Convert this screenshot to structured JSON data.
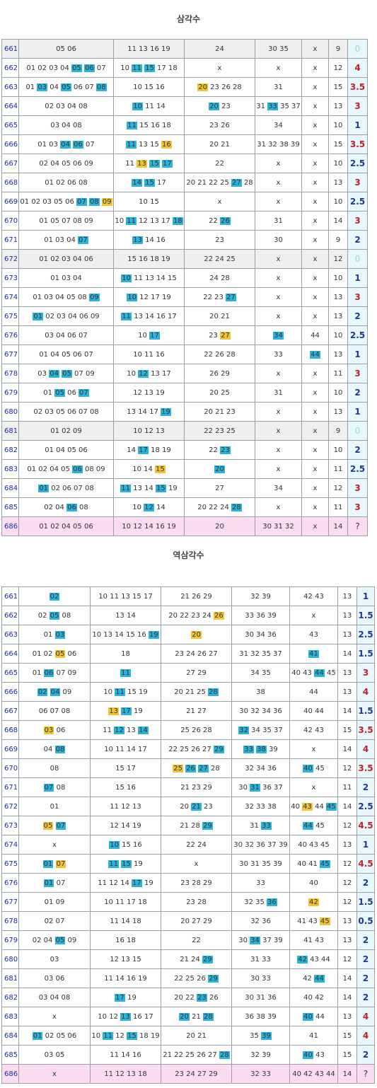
{
  "t1": "삼각수",
  "t2": "역삼각수",
  "table1": [
    {
      "no": "661",
      "cells": [
        "05 06",
        "11 13 16 19",
        "24",
        "30 35",
        "x"
      ],
      "sum": "9",
      "res": "0",
      "cls": "zero",
      "row": "gray"
    },
    {
      "no": "662",
      "cells": [
        "01 02 03 04 [05] [06] 07",
        "10 [11] [15] 17 18",
        "x",
        "x",
        "x"
      ],
      "sum": "12",
      "res": "4",
      "cls": "red"
    },
    {
      "no": "663",
      "cells": [
        "01 [03] 04 [05] 06 07 [08]",
        "10 15 16",
        "{20} 23 26 28",
        "31",
        "x"
      ],
      "sum": "15",
      "res": "3.5",
      "cls": "red"
    },
    {
      "no": "664",
      "cells": [
        "02 03 04 08",
        "[10] 11 14",
        "[20] 23",
        "31 [33] 35 37",
        "x"
      ],
      "sum": "13",
      "res": "3",
      "cls": "red"
    },
    {
      "no": "665",
      "cells": [
        "03 04 08",
        "[11] 15 16 18",
        "23 26",
        "34",
        "x"
      ],
      "sum": "10",
      "res": "1",
      "cls": ""
    },
    {
      "no": "666",
      "cells": [
        "01 03 [04] [06] 07",
        "[11] 13 15 {16}",
        "20 21",
        "31 32 38 39",
        "x"
      ],
      "sum": "15",
      "res": "3.5",
      "cls": "red"
    },
    {
      "no": "667",
      "cells": [
        "02 04 05 06 09",
        "11 {13} [15] [17]",
        "22",
        "x",
        "x"
      ],
      "sum": "10",
      "res": "2.5",
      "cls": ""
    },
    {
      "no": "668",
      "cells": [
        "01 02 06 08",
        "[14] [15] 17",
        "20 21 22 25 [27] 28",
        "x",
        "x"
      ],
      "sum": "13",
      "res": "3",
      "cls": "red"
    },
    {
      "no": "669",
      "cells": [
        "01 02 03 05 06 [07] [08] {09}",
        "10 15",
        "x",
        "x",
        "x"
      ],
      "sum": "10",
      "res": "2.5",
      "cls": ""
    },
    {
      "no": "670",
      "cells": [
        "01 05 07 08 09",
        "10 [11] 12 13 17 [18]",
        "22 [26]",
        "31",
        "x"
      ],
      "sum": "14",
      "res": "3",
      "cls": "red"
    },
    {
      "no": "671",
      "cells": [
        "01 03 04 [07]",
        "[13] 14 16",
        "23",
        "30",
        "x"
      ],
      "sum": "9",
      "res": "2",
      "cls": ""
    },
    {
      "no": "672",
      "cells": [
        "01 02 03 04 06",
        "15 16 18 19",
        "22 24 25",
        "x",
        "x"
      ],
      "sum": "12",
      "res": "0",
      "cls": "zero",
      "row": "gray"
    },
    {
      "no": "673",
      "cells": [
        "01 03 04",
        "[10] 11 13 14 15",
        "24 28",
        "x",
        "x"
      ],
      "sum": "10",
      "res": "1",
      "cls": ""
    },
    {
      "no": "674",
      "cells": [
        "01 03 04 05 08 [09]",
        "[10] 12 17 19",
        "22 23 [27]",
        "x",
        "x"
      ],
      "sum": "13",
      "res": "3",
      "cls": "red"
    },
    {
      "no": "675",
      "cells": [
        "[01] 02 03 04 06 09",
        "[11] 13 14 16 17",
        "20 21",
        "x",
        "x"
      ],
      "sum": "13",
      "res": "2",
      "cls": ""
    },
    {
      "no": "676",
      "cells": [
        "03 04 06 07",
        "10 [17]",
        "23 {27}",
        "[34]",
        "44"
      ],
      "sum": "10",
      "res": "2.5",
      "cls": ""
    },
    {
      "no": "677",
      "cells": [
        "01 04 05 06 07",
        "10 11 16",
        "22 26 28",
        "33",
        "[44]"
      ],
      "sum": "13",
      "res": "1",
      "cls": ""
    },
    {
      "no": "678",
      "cells": [
        "03 [04] [05] 07 09",
        "10 [12] 13 17",
        "26 29",
        "x",
        "x"
      ],
      "sum": "11",
      "res": "3",
      "cls": "red"
    },
    {
      "no": "679",
      "cells": [
        "01 [05] 06 [07]",
        "12 13 19",
        "20 25",
        "31",
        "x"
      ],
      "sum": "10",
      "res": "2",
      "cls": ""
    },
    {
      "no": "680",
      "cells": [
        "02 03 05 06 07 08",
        "13 14 17 [19]",
        "20 21 23",
        "x",
        "x"
      ],
      "sum": "13",
      "res": "1",
      "cls": ""
    },
    {
      "no": "681",
      "cells": [
        "01 02 09",
        "10 12 13",
        "22 23 25",
        "x",
        "x"
      ],
      "sum": "9",
      "res": "0",
      "cls": "zero",
      "row": "gray"
    },
    {
      "no": "682",
      "cells": [
        "01 04 05 06",
        "14 [17] 18 19",
        "22 [23]",
        "x",
        "x"
      ],
      "sum": "10",
      "res": "2",
      "cls": ""
    },
    {
      "no": "683",
      "cells": [
        "01 02 04 05 [06] 08 09",
        "10 14 {15}",
        "[20]",
        "x",
        "x"
      ],
      "sum": "11",
      "res": "2.5",
      "cls": ""
    },
    {
      "no": "684",
      "cells": [
        "[01] 02 06 07 08",
        "[11] 13 14 [15] 19",
        "27",
        "34",
        "x"
      ],
      "sum": "12",
      "res": "3",
      "cls": "red"
    },
    {
      "no": "685",
      "cells": [
        "02 04 [06] 08",
        "10 [12] 14",
        "20 22 24 [28]",
        "x",
        "x"
      ],
      "sum": "11",
      "res": "3",
      "cls": "red"
    },
    {
      "no": "686",
      "cells": [
        "01 02 04 05 06",
        "10 12 14 16 19",
        "20",
        "30 31 32",
        "x"
      ],
      "sum": "14",
      "res": "?",
      "cls": "q",
      "row": "pink"
    }
  ],
  "table2": [
    {
      "no": "661",
      "cells": [
        "[02]",
        "10 11 13 15 17",
        "21 26 29",
        "32 39",
        "42 43"
      ],
      "sum": "13",
      "res": "1",
      "cls": ""
    },
    {
      "no": "662",
      "cells": [
        "02 [05] 08",
        "13 14",
        "20 22 23 24 {26}",
        "33 36 39",
        "x"
      ],
      "sum": "13",
      "res": "1.5",
      "cls": ""
    },
    {
      "no": "663",
      "cells": [
        "01 [03]",
        "10 13 14 15 16 [19]",
        "{20}",
        "30 34 36",
        "43"
      ],
      "sum": "13",
      "res": "2.5",
      "cls": ""
    },
    {
      "no": "664",
      "cells": [
        "01 02 {05} 06",
        "18",
        "23 24 26 27",
        "31 32 35 37",
        "[41]"
      ],
      "sum": "14",
      "res": "1.5",
      "cls": ""
    },
    {
      "no": "665",
      "cells": [
        "01 [06] 07 09",
        "[11]",
        "27 29",
        "34 35",
        "40 43 [44] 45"
      ],
      "sum": "13",
      "res": "3",
      "cls": "red"
    },
    {
      "no": "666",
      "cells": [
        "[02] [04] 09",
        "10 [11] 15 19",
        "20 21 25 [28]",
        "38",
        "44"
      ],
      "sum": "13",
      "res": "4",
      "cls": "red"
    },
    {
      "no": "667",
      "cells": [
        "06 07 08",
        "{13} [17] 19",
        "21 27",
        "30 32 34 36",
        "40 44"
      ],
      "sum": "14",
      "res": "1.5",
      "cls": ""
    },
    {
      "no": "668",
      "cells": [
        "{03} 06",
        "11 [12] 13 [14]",
        "25 26 28",
        "[32] 34 35 37",
        "42 43"
      ],
      "sum": "15",
      "res": "3.5",
      "cls": "red"
    },
    {
      "no": "669",
      "cells": [
        "04 [08]",
        "10 11 14 17",
        "22 25 26 27 [29]",
        "[33] [38] 39",
        "x"
      ],
      "sum": "14",
      "res": "4",
      "cls": "red"
    },
    {
      "no": "670",
      "cells": [
        "08",
        "15 17",
        "{25} [26] [27] 28",
        "32 34 36",
        "[40] 45"
      ],
      "sum": "12",
      "res": "3.5",
      "cls": "red"
    },
    {
      "no": "671",
      "cells": [
        "[07] 08",
        "15 16",
        "21 23 29",
        "30 [31] 36 37",
        "x"
      ],
      "sum": "11",
      "res": "2",
      "cls": ""
    },
    {
      "no": "672",
      "cells": [
        "01",
        "11 12 13",
        "20 [21] 23",
        "32 33 38",
        "40 {43} 44 [45]"
      ],
      "sum": "14",
      "res": "2.5",
      "cls": ""
    },
    {
      "no": "673",
      "cells": [
        "{05} [07]",
        "12 14 19",
        "21 28 [29]",
        "31 [33]",
        "[44] 45"
      ],
      "sum": "12",
      "res": "4.5",
      "cls": "red"
    },
    {
      "no": "674",
      "cells": [
        "x",
        "[10] 15 16",
        "22 24",
        "30 32 36 37 39",
        "40 43 45"
      ],
      "sum": "13",
      "res": "1",
      "cls": ""
    },
    {
      "no": "675",
      "cells": [
        "[01] {07}",
        "[11] [15] 19",
        "x",
        "30 31 35 39",
        "40 41 [45]"
      ],
      "sum": "12",
      "res": "4.5",
      "cls": "red"
    },
    {
      "no": "676",
      "cells": [
        "[01] 07",
        "11 12 14 [17] 19",
        "23 28 29",
        "33",
        "40"
      ],
      "sum": "12",
      "res": "2",
      "cls": ""
    },
    {
      "no": "677",
      "cells": [
        "01 09",
        "10 11 17 18",
        "23 28",
        "32 35 [36]",
        "{42}"
      ],
      "sum": "12",
      "res": "1.5",
      "cls": ""
    },
    {
      "no": "678",
      "cells": [
        "02 07",
        "11 14 18",
        "20 27 29",
        "32 36",
        "41 43 {45}"
      ],
      "sum": "13",
      "res": "0.5",
      "cls": ""
    },
    {
      "no": "679",
      "cells": [
        "02 04 [05] 09",
        "16 18",
        "22",
        "30 [34] 37 39",
        "41 43"
      ],
      "sum": "13",
      "res": "2",
      "cls": ""
    },
    {
      "no": "680",
      "cells": [
        "03",
        "12 13 15",
        "21 24 [29]",
        "31 33",
        "[42] 43 44"
      ],
      "sum": "12",
      "res": "2",
      "cls": ""
    },
    {
      "no": "681",
      "cells": [
        "03 06",
        "11 14 16 19",
        "22 25 26 [29]",
        "30 33",
        "42 [44]"
      ],
      "sum": "14",
      "res": "2",
      "cls": ""
    },
    {
      "no": "682",
      "cells": [
        "03 04 08",
        "[17] 19",
        "20 22 [23] 26",
        "30 31 36",
        "40 42"
      ],
      "sum": "14",
      "res": "2",
      "cls": ""
    },
    {
      "no": "683",
      "cells": [
        "x",
        "10 12 [13] 16 17",
        "[20] 21 [28]",
        "36 38 39",
        "[40] 44"
      ],
      "sum": "13",
      "res": "4",
      "cls": "red"
    },
    {
      "no": "684",
      "cells": [
        "[01] 02 05 06",
        "10 [11] 12 [15] 18 19",
        "20 21",
        "35 [39]",
        "41"
      ],
      "sum": "15",
      "res": "4",
      "cls": "red"
    },
    {
      "no": "685",
      "cells": [
        "03 05",
        "11 14 16",
        "21 22 25 26 27 [28]",
        "32 39",
        "[40] 43"
      ],
      "sum": "15",
      "res": "2",
      "cls": ""
    },
    {
      "no": "686",
      "cells": [
        "x",
        "11 12 13 18",
        "23 24 27 29",
        "32 33",
        "40 42 43 44"
      ],
      "sum": "14",
      "res": "?",
      "cls": "q",
      "row": "pink"
    }
  ],
  "colors": {
    "highlight_blue": "#2ab4dc",
    "highlight_yellow": "#f4c430",
    "result_red": "#c0202a",
    "result_blue": "#1a3a8c",
    "result_cell_bg": "#e8f7fb",
    "zero_row_bg": "#efefef",
    "current_row_bg": "#fbdcf0"
  }
}
